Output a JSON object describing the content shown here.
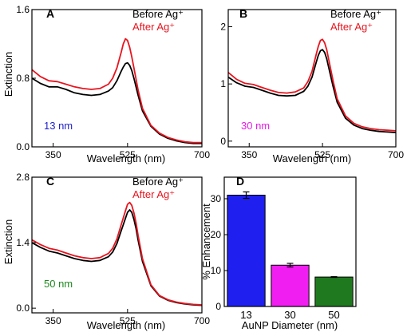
{
  "chart_data": [
    {
      "type": "line",
      "panel_label": "A",
      "xlabel": "Wavelength (nm)",
      "ylabel": "Extinction",
      "xlim": [
        300,
        700
      ],
      "ylim": [
        0,
        1.6
      ],
      "xticks": [
        350,
        525,
        700
      ],
      "yticks": [
        0.0,
        0.8,
        1.6
      ],
      "ytick_labels": [
        "0.0",
        "0.8",
        "1.6"
      ],
      "legend": [
        "Before Ag⁺",
        "After Ag⁺"
      ],
      "legend_position": "top-right",
      "annotation": "13 nm",
      "annotation_color": "#1f1fcc",
      "series": [
        {
          "name": "Before Ag⁺",
          "color": "#000000",
          "x": [
            300,
            320,
            340,
            360,
            380,
            400,
            420,
            440,
            460,
            480,
            490,
            500,
            510,
            515,
            520,
            525,
            530,
            535,
            540,
            550,
            560,
            580,
            600,
            620,
            640,
            660,
            680,
            700
          ],
          "y": [
            0.8,
            0.74,
            0.7,
            0.7,
            0.67,
            0.63,
            0.61,
            0.6,
            0.61,
            0.65,
            0.69,
            0.77,
            0.88,
            0.93,
            0.97,
            0.98,
            0.95,
            0.89,
            0.8,
            0.6,
            0.42,
            0.24,
            0.15,
            0.1,
            0.07,
            0.05,
            0.04,
            0.04
          ]
        },
        {
          "name": "After Ag⁺",
          "color": "#e8141e",
          "x": [
            300,
            320,
            340,
            360,
            380,
            400,
            420,
            440,
            460,
            480,
            490,
            500,
            510,
            515,
            520,
            525,
            530,
            535,
            540,
            550,
            560,
            580,
            600,
            620,
            640,
            660,
            680,
            700
          ],
          "y": [
            0.9,
            0.82,
            0.77,
            0.76,
            0.73,
            0.7,
            0.68,
            0.67,
            0.68,
            0.73,
            0.8,
            0.92,
            1.1,
            1.2,
            1.26,
            1.24,
            1.16,
            1.05,
            0.92,
            0.66,
            0.45,
            0.25,
            0.16,
            0.11,
            0.08,
            0.06,
            0.05,
            0.05
          ]
        }
      ]
    },
    {
      "type": "line",
      "panel_label": "B",
      "xlabel": "Wavelength (nm)",
      "ylabel": "",
      "xlim": [
        300,
        700
      ],
      "ylim": [
        -0.1,
        2.3
      ],
      "xticks": [
        350,
        525,
        700
      ],
      "yticks": [
        0,
        1,
        2
      ],
      "ytick_labels": [
        "0",
        "1",
        "2"
      ],
      "legend": [
        "Before Ag⁺",
        "After Ag⁺"
      ],
      "legend_position": "top-right",
      "annotation": "30 nm",
      "annotation_color": "#e61ee6",
      "series": [
        {
          "name": "Before Ag⁺",
          "color": "#000000",
          "x": [
            300,
            320,
            340,
            360,
            380,
            400,
            420,
            440,
            460,
            480,
            490,
            500,
            510,
            515,
            520,
            525,
            530,
            535,
            540,
            550,
            560,
            580,
            600,
            620,
            640,
            660,
            680,
            700
          ],
          "y": [
            1.12,
            1.02,
            0.96,
            0.94,
            0.89,
            0.84,
            0.8,
            0.79,
            0.8,
            0.87,
            0.96,
            1.12,
            1.38,
            1.5,
            1.58,
            1.6,
            1.55,
            1.44,
            1.28,
            0.96,
            0.68,
            0.4,
            0.28,
            0.22,
            0.19,
            0.17,
            0.16,
            0.15
          ]
        },
        {
          "name": "After Ag⁺",
          "color": "#e8141e",
          "x": [
            300,
            320,
            340,
            360,
            380,
            400,
            420,
            440,
            460,
            480,
            490,
            500,
            510,
            515,
            520,
            525,
            530,
            535,
            540,
            550,
            560,
            580,
            600,
            620,
            640,
            660,
            680,
            700
          ],
          "y": [
            1.2,
            1.08,
            1.01,
            0.99,
            0.94,
            0.89,
            0.85,
            0.84,
            0.86,
            0.93,
            1.04,
            1.22,
            1.52,
            1.66,
            1.76,
            1.78,
            1.72,
            1.6,
            1.42,
            1.06,
            0.74,
            0.44,
            0.31,
            0.25,
            0.22,
            0.2,
            0.19,
            0.18
          ]
        }
      ]
    },
    {
      "type": "line",
      "panel_label": "C",
      "xlabel": "Wavelength (nm)",
      "ylabel": "Extinction",
      "xlim": [
        300,
        700
      ],
      "ylim": [
        -0.1,
        2.8
      ],
      "xticks": [
        350,
        525,
        700
      ],
      "yticks": [
        0.0,
        1.4,
        2.8
      ],
      "ytick_labels": [
        "0.0",
        "1.4",
        "2.8"
      ],
      "legend": [
        "Before Ag⁺",
        "After Ag⁺"
      ],
      "legend_position": "top-right",
      "annotation": "50 nm",
      "annotation_color": "#1f8a1f",
      "series": [
        {
          "name": "Before Ag⁺",
          "color": "#000000",
          "x": [
            300,
            320,
            340,
            360,
            380,
            400,
            420,
            440,
            460,
            480,
            490,
            500,
            510,
            520,
            525,
            530,
            535,
            540,
            545,
            550,
            560,
            580,
            600,
            620,
            640,
            660,
            680,
            700
          ],
          "y": [
            1.4,
            1.3,
            1.22,
            1.18,
            1.12,
            1.06,
            1.02,
            1.0,
            1.02,
            1.1,
            1.2,
            1.38,
            1.65,
            1.92,
            2.05,
            2.1,
            2.05,
            1.9,
            1.7,
            1.45,
            1.0,
            0.48,
            0.26,
            0.17,
            0.12,
            0.09,
            0.07,
            0.06
          ]
        },
        {
          "name": "After Ag⁺",
          "color": "#e8141e",
          "x": [
            300,
            320,
            340,
            360,
            380,
            400,
            420,
            440,
            460,
            480,
            490,
            500,
            510,
            520,
            525,
            530,
            535,
            540,
            545,
            550,
            560,
            580,
            600,
            620,
            640,
            660,
            680,
            700
          ],
          "y": [
            1.46,
            1.36,
            1.28,
            1.24,
            1.18,
            1.12,
            1.08,
            1.06,
            1.08,
            1.17,
            1.28,
            1.48,
            1.78,
            2.08,
            2.22,
            2.26,
            2.2,
            2.04,
            1.82,
            1.55,
            1.06,
            0.5,
            0.27,
            0.18,
            0.13,
            0.1,
            0.08,
            0.07
          ]
        }
      ]
    },
    {
      "type": "bar",
      "panel_label": "D",
      "xlabel": "AuNP Diameter (nm)",
      "ylabel": "% Enhancement",
      "categories": [
        "13",
        "30",
        "50"
      ],
      "values": [
        31.0,
        11.5,
        8.2
      ],
      "errors": [
        0.9,
        0.5,
        0.1
      ],
      "colors": [
        "#1f1ff0",
        "#f01ef0",
        "#1f7a1f"
      ],
      "ylim": [
        0,
        36
      ],
      "yticks": [
        0,
        10,
        20,
        30
      ]
    }
  ]
}
